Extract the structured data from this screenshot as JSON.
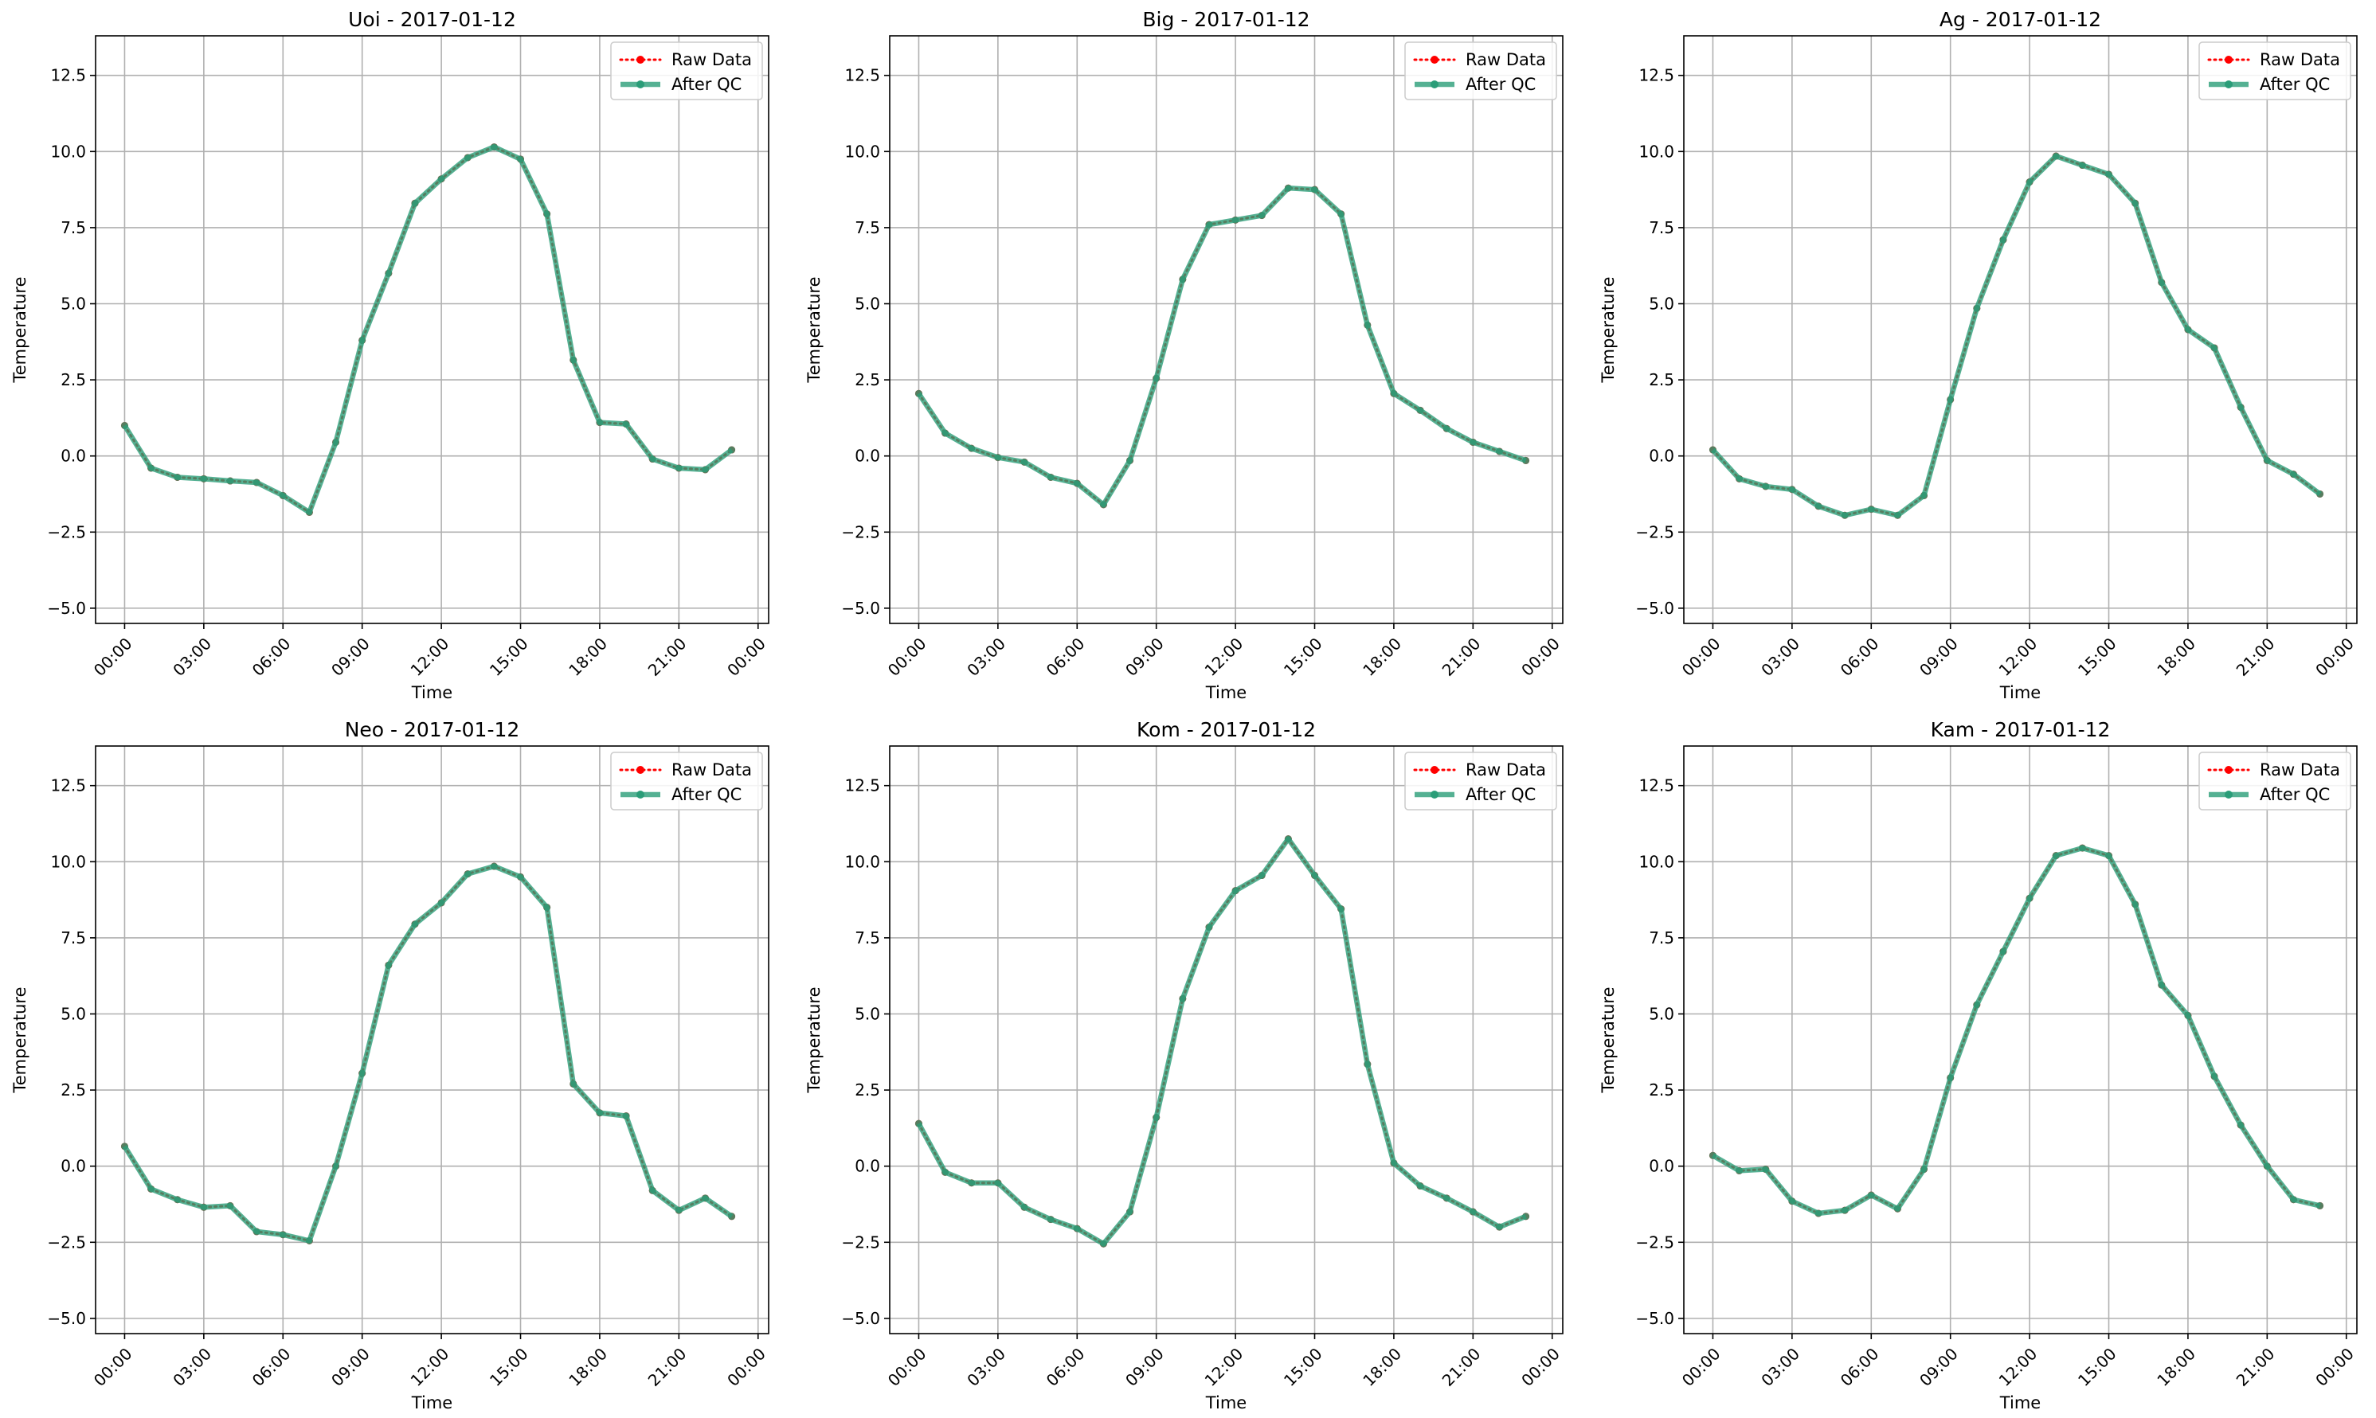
{
  "chart_data": [
    {
      "type": "line",
      "title": "Uoi - 2017-01-12",
      "xlabel": "Time",
      "ylabel": "Temperature",
      "xticks": [
        "00:00",
        "03:00",
        "06:00",
        "09:00",
        "12:00",
        "15:00",
        "18:00",
        "21:00",
        "00:00"
      ],
      "yticks": [
        "−5.0",
        "−2.5",
        "0.0",
        "2.5",
        "5.0",
        "7.5",
        "10.0",
        "12.5"
      ],
      "ylim": [
        -5.5,
        13.8
      ],
      "grid": true,
      "legend_position": "top-right",
      "x_hours": [
        0,
        1,
        2,
        3,
        4,
        5,
        6,
        7,
        8,
        9,
        10,
        11,
        12,
        13,
        14,
        15,
        16,
        17,
        18,
        19,
        20,
        21,
        22,
        23
      ],
      "series": [
        {
          "name": "Raw Data",
          "color": "#ff0000",
          "style": "dotted",
          "values": [
            1.0,
            -0.4,
            -0.7,
            -0.75,
            -0.82,
            -0.87,
            -1.3,
            -1.85,
            0.45,
            3.8,
            6.0,
            8.3,
            9.1,
            9.8,
            10.15,
            9.75,
            7.95,
            3.15,
            1.1,
            1.05,
            -0.1,
            -0.4,
            -0.45,
            0.2
          ]
        },
        {
          "name": "After QC",
          "color": "#2a9d78",
          "style": "solid",
          "values": [
            1.0,
            -0.4,
            -0.7,
            -0.75,
            -0.82,
            -0.87,
            -1.3,
            -1.85,
            0.45,
            3.8,
            6.0,
            8.3,
            9.1,
            9.8,
            10.15,
            9.75,
            7.95,
            3.15,
            1.1,
            1.05,
            -0.1,
            -0.4,
            -0.45,
            0.2
          ]
        }
      ]
    },
    {
      "type": "line",
      "title": "Big - 2017-01-12",
      "xlabel": "Time",
      "ylabel": "Temperature",
      "xticks": [
        "00:00",
        "03:00",
        "06:00",
        "09:00",
        "12:00",
        "15:00",
        "18:00",
        "21:00",
        "00:00"
      ],
      "yticks": [
        "−5.0",
        "−2.5",
        "0.0",
        "2.5",
        "5.0",
        "7.5",
        "10.0",
        "12.5"
      ],
      "ylim": [
        -5.5,
        13.8
      ],
      "grid": true,
      "legend_position": "top-right",
      "x_hours": [
        0,
        1,
        2,
        3,
        4,
        5,
        6,
        7,
        8,
        9,
        10,
        11,
        12,
        13,
        14,
        15,
        16,
        17,
        18,
        19,
        20,
        21,
        22,
        23
      ],
      "series": [
        {
          "name": "Raw Data",
          "color": "#ff0000",
          "style": "dotted",
          "values": [
            2.05,
            0.75,
            0.25,
            -0.05,
            -0.2,
            -0.7,
            -0.9,
            -1.6,
            -0.15,
            2.55,
            5.8,
            7.6,
            7.75,
            7.9,
            8.8,
            8.75,
            7.95,
            4.3,
            2.05,
            1.5,
            0.9,
            0.45,
            0.15,
            -0.15
          ]
        },
        {
          "name": "After QC",
          "color": "#2a9d78",
          "style": "solid",
          "values": [
            2.05,
            0.75,
            0.25,
            -0.05,
            -0.2,
            -0.7,
            -0.9,
            -1.6,
            -0.15,
            2.55,
            5.8,
            7.6,
            7.75,
            7.9,
            8.8,
            8.75,
            7.95,
            4.3,
            2.05,
            1.5,
            0.9,
            0.45,
            0.15,
            -0.15
          ]
        }
      ]
    },
    {
      "type": "line",
      "title": "Ag - 2017-01-12",
      "xlabel": "Time",
      "ylabel": "Temperature",
      "xticks": [
        "00:00",
        "03:00",
        "06:00",
        "09:00",
        "12:00",
        "15:00",
        "18:00",
        "21:00",
        "00:00"
      ],
      "yticks": [
        "−5.0",
        "−2.5",
        "0.0",
        "2.5",
        "5.0",
        "7.5",
        "10.0",
        "12.5"
      ],
      "ylim": [
        -5.5,
        13.8
      ],
      "grid": true,
      "legend_position": "top-right",
      "x_hours": [
        0,
        1,
        2,
        3,
        4,
        5,
        6,
        7,
        8,
        9,
        10,
        11,
        12,
        13,
        14,
        15,
        16,
        17,
        18,
        19,
        20,
        21,
        22,
        23
      ],
      "series": [
        {
          "name": "Raw Data",
          "color": "#ff0000",
          "style": "dotted",
          "values": [
            0.2,
            -0.75,
            -1.0,
            -1.1,
            -1.65,
            -1.95,
            -1.75,
            -1.95,
            -1.3,
            1.85,
            4.85,
            7.1,
            9.0,
            9.85,
            9.55,
            9.25,
            8.3,
            5.7,
            4.15,
            3.55,
            1.6,
            -0.15,
            -0.6,
            -1.25
          ]
        },
        {
          "name": "After QC",
          "color": "#2a9d78",
          "style": "solid",
          "values": [
            0.2,
            -0.75,
            -1.0,
            -1.1,
            -1.65,
            -1.95,
            -1.75,
            -1.95,
            -1.3,
            1.85,
            4.85,
            7.1,
            9.0,
            9.85,
            9.55,
            9.25,
            8.3,
            5.7,
            4.15,
            3.55,
            1.6,
            -0.15,
            -0.6,
            -1.25
          ]
        }
      ]
    },
    {
      "type": "line",
      "title": "Neo - 2017-01-12",
      "xlabel": "Time",
      "ylabel": "Temperature",
      "xticks": [
        "00:00",
        "03:00",
        "06:00",
        "09:00",
        "12:00",
        "15:00",
        "18:00",
        "21:00",
        "00:00"
      ],
      "yticks": [
        "−5.0",
        "−2.5",
        "0.0",
        "2.5",
        "5.0",
        "7.5",
        "10.0",
        "12.5"
      ],
      "ylim": [
        -5.5,
        13.8
      ],
      "grid": true,
      "legend_position": "top-right",
      "x_hours": [
        0,
        1,
        2,
        3,
        4,
        5,
        6,
        7,
        8,
        9,
        10,
        11,
        12,
        13,
        14,
        15,
        16,
        17,
        18,
        19,
        20,
        21,
        22,
        23
      ],
      "series": [
        {
          "name": "Raw Data",
          "color": "#ff0000",
          "style": "dotted",
          "values": [
            0.65,
            -0.75,
            -1.1,
            -1.35,
            -1.3,
            -2.15,
            -2.25,
            -2.45,
            0.0,
            3.05,
            6.6,
            7.95,
            8.65,
            9.6,
            9.85,
            9.5,
            8.5,
            2.7,
            1.75,
            1.65,
            -0.8,
            -1.45,
            -1.05,
            -1.65
          ]
        },
        {
          "name": "After QC",
          "color": "#2a9d78",
          "style": "solid",
          "values": [
            0.65,
            -0.75,
            -1.1,
            -1.35,
            -1.3,
            -2.15,
            -2.25,
            -2.45,
            0.0,
            3.05,
            6.6,
            7.95,
            8.65,
            9.6,
            9.85,
            9.5,
            8.5,
            2.7,
            1.75,
            1.65,
            -0.8,
            -1.45,
            -1.05,
            -1.65
          ]
        }
      ]
    },
    {
      "type": "line",
      "title": "Kom - 2017-01-12",
      "xlabel": "Time",
      "ylabel": "Temperature",
      "xticks": [
        "00:00",
        "03:00",
        "06:00",
        "09:00",
        "12:00",
        "15:00",
        "18:00",
        "21:00",
        "00:00"
      ],
      "yticks": [
        "−5.0",
        "−2.5",
        "0.0",
        "2.5",
        "5.0",
        "7.5",
        "10.0",
        "12.5"
      ],
      "ylim": [
        -5.5,
        13.8
      ],
      "grid": true,
      "legend_position": "top-right",
      "x_hours": [
        0,
        1,
        2,
        3,
        4,
        5,
        6,
        7,
        8,
        9,
        10,
        11,
        12,
        13,
        14,
        15,
        16,
        17,
        18,
        19,
        20,
        21,
        22,
        23
      ],
      "series": [
        {
          "name": "Raw Data",
          "color": "#ff0000",
          "style": "dotted",
          "values": [
            1.4,
            -0.2,
            -0.55,
            -0.55,
            -1.35,
            -1.75,
            -2.05,
            -2.55,
            -1.5,
            1.6,
            5.5,
            7.85,
            9.05,
            9.55,
            10.75,
            9.55,
            8.45,
            3.35,
            0.1,
            -0.65,
            -1.05,
            -1.5,
            -2.0,
            -1.65
          ]
        },
        {
          "name": "After QC",
          "color": "#2a9d78",
          "style": "solid",
          "values": [
            1.4,
            -0.2,
            -0.55,
            -0.55,
            -1.35,
            -1.75,
            -2.05,
            -2.55,
            -1.5,
            1.6,
            5.5,
            7.85,
            9.05,
            9.55,
            10.75,
            9.55,
            8.45,
            3.35,
            0.1,
            -0.65,
            -1.05,
            -1.5,
            -2.0,
            -1.65
          ]
        }
      ]
    },
    {
      "type": "line",
      "title": "Kam - 2017-01-12",
      "xlabel": "Time",
      "ylabel": "Temperature",
      "xticks": [
        "00:00",
        "03:00",
        "06:00",
        "09:00",
        "12:00",
        "15:00",
        "18:00",
        "21:00",
        "00:00"
      ],
      "yticks": [
        "−5.0",
        "−2.5",
        "0.0",
        "2.5",
        "5.0",
        "7.5",
        "10.0",
        "12.5"
      ],
      "ylim": [
        -5.5,
        13.8
      ],
      "grid": true,
      "legend_position": "top-right",
      "x_hours": [
        0,
        1,
        2,
        3,
        4,
        5,
        6,
        7,
        8,
        9,
        10,
        11,
        12,
        13,
        14,
        15,
        16,
        17,
        18,
        19,
        20,
        21,
        22,
        23
      ],
      "series": [
        {
          "name": "Raw Data",
          "color": "#ff0000",
          "style": "dotted",
          "values": [
            0.35,
            -0.15,
            -0.1,
            -1.15,
            -1.55,
            -1.45,
            -0.95,
            -1.4,
            -0.1,
            2.9,
            5.3,
            7.05,
            8.8,
            10.2,
            10.45,
            10.2,
            8.6,
            5.95,
            4.95,
            2.95,
            1.35,
            0.0,
            -1.1,
            -1.3
          ]
        },
        {
          "name": "After QC",
          "color": "#2a9d78",
          "style": "solid",
          "values": [
            0.35,
            -0.15,
            -0.1,
            -1.15,
            -1.55,
            -1.45,
            -0.95,
            -1.4,
            -0.1,
            2.9,
            5.3,
            7.05,
            8.8,
            10.2,
            10.45,
            10.2,
            8.6,
            5.95,
            4.95,
            2.95,
            1.35,
            0.0,
            -1.1,
            -1.3
          ]
        }
      ]
    }
  ]
}
